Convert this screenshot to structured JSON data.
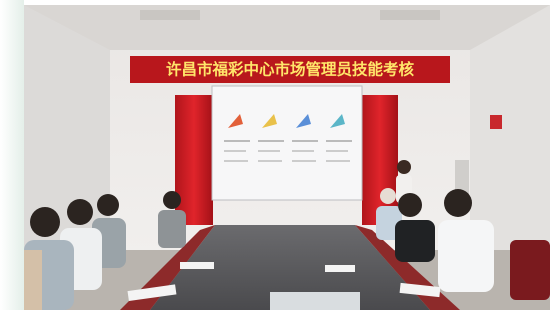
{
  "banner": {
    "text": "许昌市福彩中心市场管理员技能考核"
  }
}
